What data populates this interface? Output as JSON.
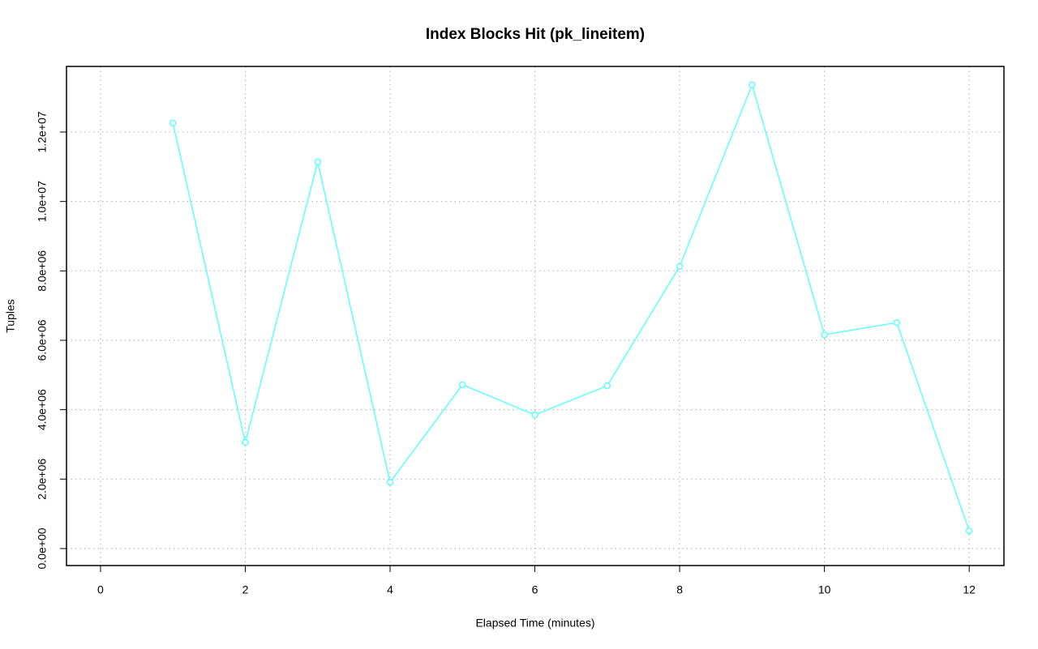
{
  "chart_data": {
    "type": "line",
    "title": "Index Blocks Hit (pk_lineitem)",
    "x_label": "Elapsed Time (minutes)",
    "y_label": "Tuples",
    "x": [
      1,
      2,
      3,
      4,
      5,
      6,
      7,
      8,
      9,
      10,
      11,
      12
    ],
    "series": [
      {
        "name": "pk_lineitem",
        "color": "#66ffff",
        "values": [
          12260000,
          3060000,
          11140000,
          1910000,
          4720000,
          3850000,
          4690000,
          8130000,
          13360000,
          6160000,
          6510000,
          510000
        ]
      }
    ],
    "xlim": [
      -0.47,
      12.48
    ],
    "ylim": [
      -490000,
      13890000
    ],
    "xticks": [
      0,
      2,
      4,
      6,
      8,
      10,
      12
    ],
    "yticks": [
      {
        "value": 0,
        "label": "0.0e+00"
      },
      {
        "value": 2000000,
        "label": "2.0e+06"
      },
      {
        "value": 4000000,
        "label": "4.0e+06"
      },
      {
        "value": 6000000,
        "label": "6.0e+06"
      },
      {
        "value": 8000000,
        "label": "8.0e+06"
      },
      {
        "value": 10000000,
        "label": "1.0e+07"
      },
      {
        "value": 12000000,
        "label": "1.2e+07"
      }
    ],
    "grid": true
  }
}
